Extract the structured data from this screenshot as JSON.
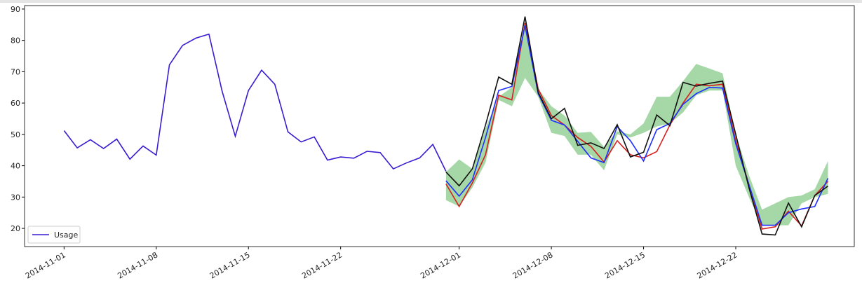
{
  "chart_data": {
    "type": "line",
    "x": [
      "2014-11-01",
      "2014-11-02",
      "2014-11-03",
      "2014-11-04",
      "2014-11-05",
      "2014-11-06",
      "2014-11-07",
      "2014-11-08",
      "2014-11-09",
      "2014-11-10",
      "2014-11-11",
      "2014-11-12",
      "2014-11-13",
      "2014-11-14",
      "2014-11-15",
      "2014-11-16",
      "2014-11-17",
      "2014-11-18",
      "2014-11-19",
      "2014-11-20",
      "2014-11-21",
      "2014-11-22",
      "2014-11-23",
      "2014-11-24",
      "2014-11-25",
      "2014-11-26",
      "2014-11-27",
      "2014-11-28",
      "2014-11-29",
      "2014-11-30",
      "2014-12-01",
      "2014-12-02",
      "2014-12-03",
      "2014-12-04",
      "2014-12-05",
      "2014-12-06",
      "2014-12-07",
      "2014-12-08",
      "2014-12-09",
      "2014-12-10",
      "2014-12-11",
      "2014-12-12",
      "2014-12-13",
      "2014-12-14",
      "2014-12-15",
      "2014-12-16",
      "2014-12-17",
      "2014-12-18",
      "2014-12-19",
      "2014-12-20",
      "2014-12-21",
      "2014-12-22",
      "2014-12-23",
      "2014-12-24",
      "2014-12-25",
      "2014-12-26",
      "2014-12-27",
      "2014-12-28",
      "2014-12-29"
    ],
    "band": {
      "color": "#2ca02c",
      "opacity": 0.42,
      "lower": [
        null,
        null,
        null,
        null,
        null,
        null,
        null,
        null,
        null,
        null,
        null,
        null,
        null,
        null,
        null,
        null,
        null,
        null,
        null,
        null,
        null,
        null,
        null,
        null,
        null,
        null,
        null,
        null,
        null,
        29,
        27,
        33,
        41,
        61,
        59,
        68,
        62,
        50.5,
        49.5,
        43.5,
        43.5,
        38.5,
        50,
        49,
        50.5,
        52.5,
        53.5,
        57,
        62.5,
        64,
        64,
        40,
        30,
        21,
        21,
        21,
        28,
        30,
        31
      ],
      "upper": [
        null,
        null,
        null,
        null,
        null,
        null,
        null,
        null,
        null,
        null,
        null,
        null,
        null,
        null,
        null,
        null,
        null,
        null,
        null,
        null,
        null,
        null,
        null,
        null,
        null,
        null,
        null,
        null,
        null,
        38,
        42,
        39,
        52,
        62,
        65,
        86,
        64.5,
        59,
        56,
        50.5,
        50.8,
        46,
        51,
        50,
        53.5,
        62,
        62,
        67,
        72.5,
        71,
        69.5,
        50,
        37,
        26,
        28,
        30,
        30.5,
        32.5,
        41.5
      ]
    },
    "series": [
      {
        "name": "Usage",
        "color": "#3a1bd1",
        "values": [
          51.2,
          45.7,
          48.3,
          45.5,
          48.5,
          42.1,
          46.3,
          43.4,
          72.2,
          78.4,
          80.7,
          82,
          63.8,
          49.4,
          64,
          70.5,
          66,
          50.8,
          47.6,
          49.2,
          41.8,
          42.8,
          42.4,
          44.6,
          44.2,
          39,
          40.9,
          42.5,
          46.8,
          38.2,
          null,
          null,
          null,
          null,
          null,
          null,
          null,
          null,
          null,
          null,
          null,
          null,
          null,
          null,
          null,
          null,
          null,
          null,
          null,
          null,
          null,
          null,
          null,
          null,
          null,
          null,
          null,
          null,
          null
        ]
      },
      {
        "color": "#d62020",
        "values": [
          null,
          null,
          null,
          null,
          null,
          null,
          null,
          null,
          null,
          null,
          null,
          null,
          null,
          null,
          null,
          null,
          null,
          null,
          null,
          null,
          null,
          null,
          null,
          null,
          null,
          null,
          null,
          null,
          null,
          34.2,
          27,
          34.5,
          43.5,
          62.5,
          61,
          85.5,
          64.5,
          56,
          53,
          49,
          46.2,
          41.2,
          48,
          43.5,
          42.5,
          44.5,
          53,
          60,
          66,
          65.5,
          66,
          48,
          34,
          19.8,
          20.5,
          25.5,
          20.8,
          30.5,
          35
        ]
      },
      {
        "color": "#1f2fff",
        "values": [
          null,
          null,
          null,
          null,
          null,
          null,
          null,
          null,
          null,
          null,
          null,
          null,
          null,
          null,
          null,
          null,
          null,
          null,
          null,
          null,
          null,
          null,
          null,
          null,
          null,
          null,
          null,
          null,
          null,
          35.2,
          30.3,
          35.5,
          49,
          64,
          65.3,
          84.7,
          63,
          54.5,
          53,
          47.8,
          42.5,
          41,
          52.5,
          48,
          41.5,
          51.5,
          53.5,
          59.6,
          63,
          65,
          64.8,
          47,
          34,
          21,
          21,
          25,
          26.2,
          27,
          36
        ]
      },
      {
        "color": "#111111",
        "values": [
          null,
          null,
          null,
          null,
          null,
          null,
          null,
          null,
          null,
          null,
          null,
          null,
          null,
          null,
          null,
          null,
          null,
          null,
          null,
          null,
          null,
          null,
          null,
          null,
          null,
          null,
          null,
          null,
          null,
          38,
          33.6,
          39,
          53,
          68.3,
          66,
          87.6,
          63.4,
          55,
          58.3,
          46.5,
          47.3,
          45.5,
          53.1,
          42.8,
          44.3,
          56.2,
          52.8,
          66.6,
          65.4,
          66.3,
          67,
          50,
          33,
          18.2,
          17.9,
          28.1,
          20.5,
          30.5,
          33.5
        ]
      }
    ],
    "xlim": [
      "2014-10-29",
      "2014-12-31"
    ],
    "xticks": [
      "2014-11-01",
      "2014-11-08",
      "2014-11-15",
      "2014-11-22",
      "2014-12-01",
      "2014-12-08",
      "2014-12-15",
      "2014-12-22"
    ],
    "ylim": [
      14.2,
      91.1
    ],
    "yticks": [
      20,
      30,
      40,
      50,
      60,
      70,
      80,
      90
    ],
    "legend": "lower left"
  }
}
